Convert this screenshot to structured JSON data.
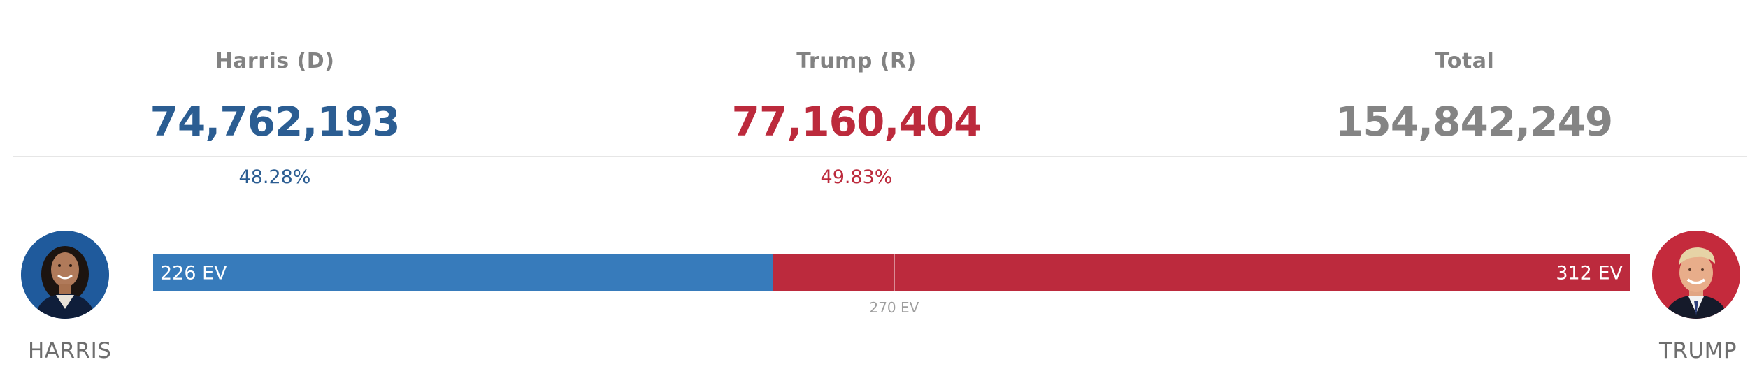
{
  "candidates": {
    "harris": {
      "header": "Harris (D)",
      "votes": "74,762,193",
      "percent": "48.28%",
      "ev_label": "226 EV",
      "ev": 226,
      "avatar_label": "HARRIS",
      "color": "#377bbb",
      "text_color": "#2b5d92"
    },
    "trump": {
      "header": "Trump (R)",
      "votes": "77,160,404",
      "percent": "49.83%",
      "ev_label": "312 EV",
      "ev": 312,
      "avatar_label": "TRUMP",
      "color": "#bc2a3d",
      "text_color": "#bc2a3c"
    }
  },
  "total": {
    "header": "Total",
    "votes": "154,842,249"
  },
  "threshold": {
    "label": "270 EV",
    "value": 270
  },
  "total_ev": 538,
  "icons": {
    "harris_avatar": "harris-portrait-icon",
    "trump_avatar": "trump-portrait-icon"
  }
}
